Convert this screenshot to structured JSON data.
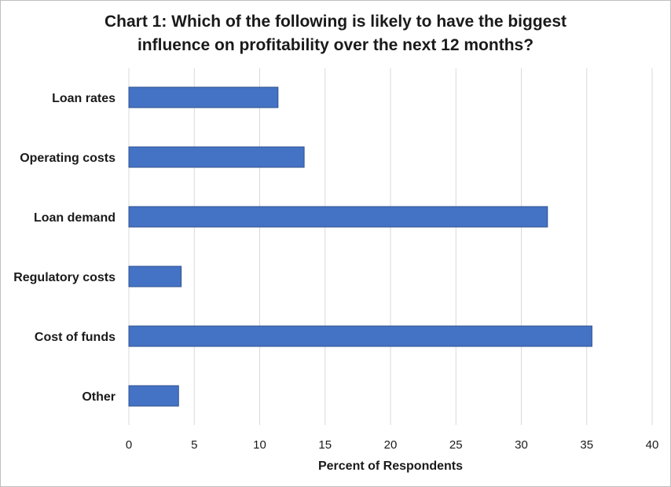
{
  "chart_data": {
    "type": "bar",
    "orientation": "horizontal",
    "title_lines": [
      "Chart 1: Which of the following is likely to have the biggest",
      "influence on profitability over the next 12 months?"
    ],
    "categories": [
      "Loan rates",
      "Operating costs",
      "Loan demand",
      "Regulatory costs",
      "Cost of funds",
      "Other"
    ],
    "values": [
      11.4,
      13.4,
      32.0,
      4.0,
      35.4,
      3.8
    ],
    "xlabel": "Percent of Respondents",
    "ylabel": "",
    "xlim": [
      0,
      40
    ],
    "xticks": [
      0,
      5,
      10,
      15,
      20,
      25,
      30,
      35,
      40
    ],
    "grid": "vertical",
    "bar_color": "#4472c4"
  }
}
